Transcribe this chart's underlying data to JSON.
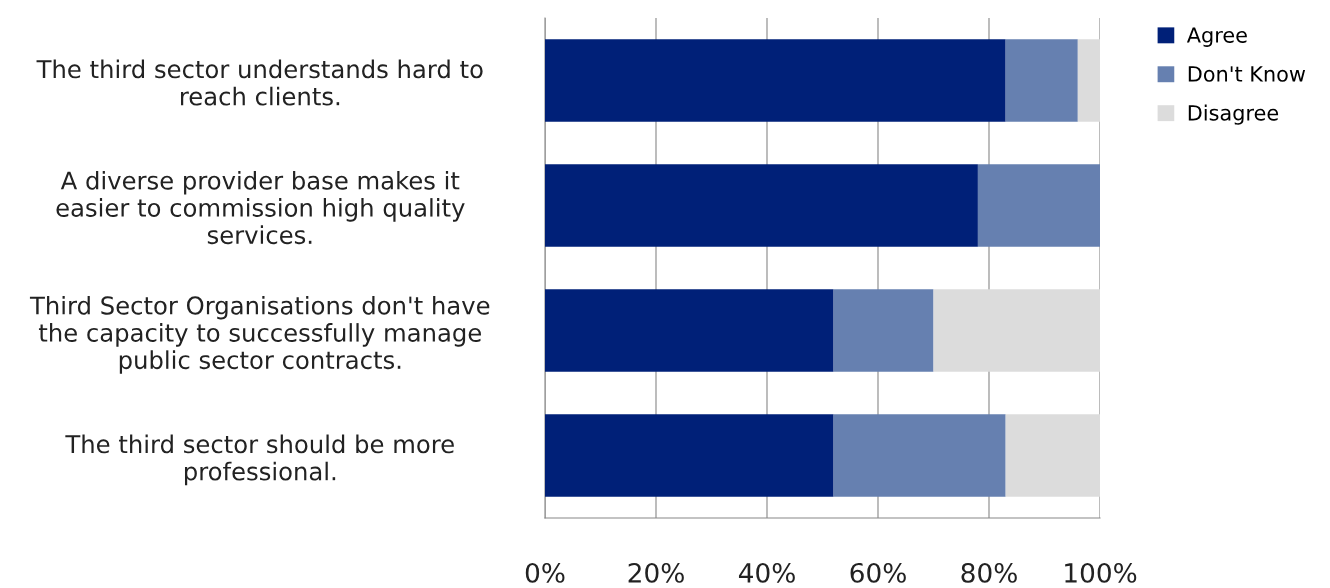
{
  "chart_data": {
    "type": "bar",
    "orientation": "horizontal",
    "stacked": true,
    "categories": [
      "The third sector understands hard to\nreach clients.",
      "A diverse provider base makes it\neasier to commission high quality\nservices.",
      "Third Sector Organisations don't have\nthe capacity to successfully manage\npublic sector contracts.",
      "The third sector should be more\nprofessional."
    ],
    "series": [
      {
        "name": "Agree",
        "color": "#002078",
        "values": [
          83,
          78,
          52,
          52
        ]
      },
      {
        "name": "Don't Know",
        "color": "#6680b0",
        "values": [
          13,
          22,
          18,
          31
        ]
      },
      {
        "name": "Disagree",
        "color": "#dcdcdc",
        "values": [
          4,
          0,
          30,
          17
        ]
      }
    ],
    "xlim": [
      0,
      100
    ],
    "xticks": [
      {
        "value": 0,
        "label": "0%"
      },
      {
        "value": 20,
        "label": "20%"
      },
      {
        "value": 40,
        "label": "40%"
      },
      {
        "value": 60,
        "label": "60%"
      },
      {
        "value": 80,
        "label": "80%"
      },
      {
        "value": 100,
        "label": "100%"
      }
    ],
    "grid": "x",
    "legend": "top right"
  }
}
